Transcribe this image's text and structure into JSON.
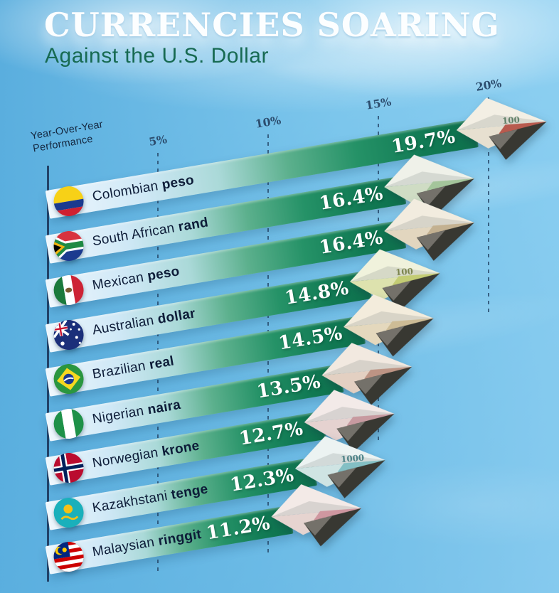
{
  "title": "CURRENCIES SOARING",
  "subtitle": "Against the U.S. Dollar",
  "axis": {
    "label_line1": "Year-Over-Year",
    "label_line2": "Performance",
    "ticks": [
      {
        "label": "5%",
        "value": 5
      },
      {
        "label": "10%",
        "value": 10
      },
      {
        "label": "15%",
        "value": 15
      },
      {
        "label": "20%",
        "value": 20
      }
    ]
  },
  "colors": {
    "subtitle_green": "#176a52",
    "bar_green_dark": "#0d6f4b",
    "bar_green_mid": "#259267",
    "bar_light_blue": "#cfe8f6",
    "axis_ink": "#2c4d6e",
    "value_text": "#ffffff",
    "sky_top": "#8fd0f0",
    "sky_bottom": "#55abdd"
  },
  "rows": [
    {
      "country": "Colombian",
      "currency": "peso",
      "flag": "colombia",
      "value": 19.7,
      "value_label": "19.7%",
      "plane": {
        "up": "#f3efe4",
        "low": "#e7e0d0",
        "tint": "#b85a4e",
        "note": "100",
        "note_color": "#486e52"
      }
    },
    {
      "country": "South African",
      "currency": "rand",
      "flag": "south-africa",
      "value": 16.4,
      "value_label": "16.4%",
      "plane": {
        "up": "#eff1e9",
        "low": "#cfdcc4",
        "tint": "#a4c59b",
        "note": "",
        "note_color": ""
      }
    },
    {
      "country": "Mexican",
      "currency": "peso",
      "flag": "mexico",
      "value": 16.4,
      "value_label": "16.4%",
      "plane": {
        "up": "#f2ecdf",
        "low": "#e2d6bf",
        "tint": "#c3b191",
        "note": "",
        "note_color": ""
      }
    },
    {
      "country": "Australian",
      "currency": "dollar",
      "flag": "australia",
      "value": 14.8,
      "value_label": "14.8%",
      "plane": {
        "up": "#f0f2dc",
        "low": "#dde2ae",
        "tint": "#c3cc74",
        "note": "100",
        "note_color": "#6a7436"
      }
    },
    {
      "country": "Brazilian",
      "currency": "real",
      "flag": "brazil",
      "value": 14.5,
      "value_label": "14.5%",
      "plane": {
        "up": "#f3ecdc",
        "low": "#e4d8bd",
        "tint": "#cdbc96",
        "note": "",
        "note_color": ""
      }
    },
    {
      "country": "Nigerian",
      "currency": "naira",
      "flag": "nigeria",
      "value": 13.5,
      "value_label": "13.5%",
      "plane": {
        "up": "#f2e9e0",
        "low": "#e3d0c2",
        "tint": "#bd9484",
        "note": "",
        "note_color": ""
      }
    },
    {
      "country": "Norwegian",
      "currency": "krone",
      "flag": "norway",
      "value": 12.7,
      "value_label": "12.7%",
      "plane": {
        "up": "#f3eae8",
        "low": "#e5d2d0",
        "tint": "#c79aa0",
        "note": "",
        "note_color": ""
      }
    },
    {
      "country": "Kazakhstani",
      "currency": "tenge",
      "flag": "kazakhstan",
      "value": 12.3,
      "value_label": "12.3%",
      "plane": {
        "up": "#ecf3f2",
        "low": "#cfe4e3",
        "tint": "#83bfc4",
        "note": "1000",
        "note_color": "#2f6e74"
      }
    },
    {
      "country": "Malaysian",
      "currency": "ringgit",
      "flag": "malaysia",
      "value": 11.2,
      "value_label": "11.2%",
      "plane": {
        "up": "#f3eae7",
        "low": "#e6d4d0",
        "tint": "#cf97a0",
        "note": "",
        "note_color": ""
      }
    }
  ],
  "chart_data": {
    "type": "bar",
    "orientation": "horizontal",
    "title": "CURRENCIES SOARING",
    "subtitle": "Against the U.S. Dollar",
    "axis_label": "Year-Over-Year Performance",
    "unit": "%",
    "categories": [
      "Colombian peso",
      "South African rand",
      "Mexican peso",
      "Australian dollar",
      "Brazilian real",
      "Nigerian naira",
      "Norwegian krone",
      "Kazakhstani tenge",
      "Malaysian ringgit"
    ],
    "values": [
      19.7,
      16.4,
      16.4,
      14.8,
      14.5,
      13.5,
      12.7,
      12.3,
      11.2
    ],
    "xlim": [
      0,
      20
    ],
    "xticks": [
      "5%",
      "10%",
      "15%",
      "20%"
    ],
    "grid": "dashed vertical gridlines",
    "legend_position": "none",
    "style": "tilted ascending ribbon bars ending in paper planes folded from banknotes, sky background"
  }
}
